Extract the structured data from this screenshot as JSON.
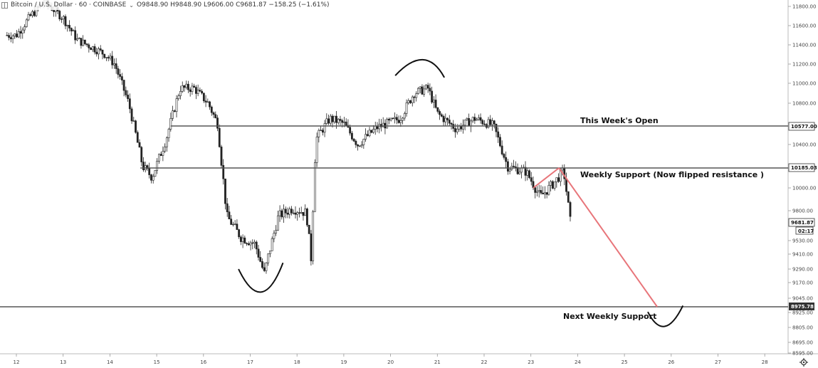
{
  "header": {
    "symbol": "Bitcoin / U.S. Dollar · 60 · COINBASE",
    "ohlc": "O9848.90  H9848.90  L9606.00  C9681.87  −158.25 (−1.61%)"
  },
  "annotations": {
    "week_open": "This Week's Open",
    "weekly_support": "Weekly Support (Now flipped resistance )",
    "next_support": "Next Weekly Support"
  },
  "price_tags": {
    "week_open": "10577.00",
    "weekly_support": "10185.03",
    "last": "9681.87",
    "countdown": "02:17",
    "next_support": "8975.78"
  },
  "colors": {
    "projection": "#e8757a",
    "level": "#555555",
    "candle": "#222222"
  },
  "chart_data": {
    "type": "candlestick",
    "title": "",
    "x_ticks": [
      "12",
      "13",
      "14",
      "15",
      "16",
      "17",
      "18",
      "19",
      "20",
      "21",
      "22",
      "23",
      "24",
      "25",
      "26",
      "27",
      "28"
    ],
    "y_ticks": [
      "11800.00",
      "11600.00",
      "11400.00",
      "11200.00",
      "11000.00",
      "10800.00",
      "10400.00",
      "10000.00",
      "9800.00",
      "9530.00",
      "9410.00",
      "9290.00",
      "9170.00",
      "9045.00",
      "8925.00",
      "8805.00",
      "8695.00",
      "8595.00"
    ],
    "levels": [
      {
        "label": "This Week's Open",
        "price": 10577.0
      },
      {
        "label": "Weekly Support (Now flipped resistance )",
        "price": 10185.03
      },
      {
        "label": "Next Weekly Support",
        "price": 8975.78
      }
    ],
    "price_path": [
      {
        "day": 12.0,
        "price": 11500
      },
      {
        "day": 12.3,
        "price": 11700
      },
      {
        "day": 12.6,
        "price": 11850
      },
      {
        "day": 13.0,
        "price": 11680
      },
      {
        "day": 13.3,
        "price": 11450
      },
      {
        "day": 13.6,
        "price": 11380
      },
      {
        "day": 13.9,
        "price": 11300
      },
      {
        "day": 14.1,
        "price": 11200
      },
      {
        "day": 14.4,
        "price": 10800
      },
      {
        "day": 14.7,
        "price": 10200
      },
      {
        "day": 14.9,
        "price": 10100
      },
      {
        "day": 15.2,
        "price": 10450
      },
      {
        "day": 15.5,
        "price": 10950
      },
      {
        "day": 15.8,
        "price": 10950
      },
      {
        "day": 16.1,
        "price": 10800
      },
      {
        "day": 16.3,
        "price": 10600
      },
      {
        "day": 16.5,
        "price": 9750
      },
      {
        "day": 16.8,
        "price": 9560
      },
      {
        "day": 17.1,
        "price": 9500
      },
      {
        "day": 17.3,
        "price": 9250
      },
      {
        "day": 17.6,
        "price": 9750
      },
      {
        "day": 17.9,
        "price": 9820
      },
      {
        "day": 18.2,
        "price": 9780
      },
      {
        "day": 18.3,
        "price": 9380
      },
      {
        "day": 18.4,
        "price": 10450
      },
      {
        "day": 18.7,
        "price": 10650
      },
      {
        "day": 19.0,
        "price": 10600
      },
      {
        "day": 19.3,
        "price": 10400
      },
      {
        "day": 19.7,
        "price": 10560
      },
      {
        "day": 20.2,
        "price": 10650
      },
      {
        "day": 20.5,
        "price": 10900
      },
      {
        "day": 20.8,
        "price": 10950
      },
      {
        "day": 21.0,
        "price": 10700
      },
      {
        "day": 21.4,
        "price": 10550
      },
      {
        "day": 21.8,
        "price": 10650
      },
      {
        "day": 22.2,
        "price": 10580
      },
      {
        "day": 22.5,
        "price": 10200
      },
      {
        "day": 22.9,
        "price": 10150
      },
      {
        "day": 23.2,
        "price": 9920
      },
      {
        "day": 23.5,
        "price": 10050
      },
      {
        "day": 23.7,
        "price": 10160
      },
      {
        "day": 23.85,
        "price": 9681.87
      }
    ],
    "projection": [
      {
        "day": 23.6,
        "price": 10185.03
      },
      {
        "day": 25.7,
        "price": 8975.78
      }
    ]
  }
}
